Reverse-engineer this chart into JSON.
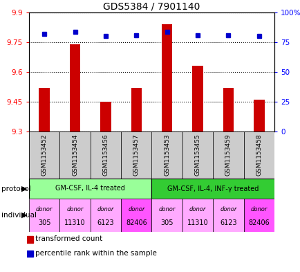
{
  "title": "GDS5384 / 7901140",
  "samples": [
    "GSM1153452",
    "GSM1153454",
    "GSM1153456",
    "GSM1153457",
    "GSM1153453",
    "GSM1153455",
    "GSM1153459",
    "GSM1153458"
  ],
  "bar_values": [
    9.52,
    9.74,
    9.45,
    9.52,
    9.84,
    9.63,
    9.52,
    9.46
  ],
  "bar_base": 9.3,
  "percentile_values": [
    82,
    84,
    80,
    81,
    84,
    81,
    81,
    80
  ],
  "ylim_left": [
    9.3,
    9.9
  ],
  "ylim_right": [
    0,
    100
  ],
  "yticks_left": [
    9.3,
    9.45,
    9.6,
    9.75,
    9.9
  ],
  "ytick_labels_left": [
    "9.3",
    "9.45",
    "9.6",
    "9.75",
    "9.9"
  ],
  "yticks_right": [
    0,
    25,
    50,
    75,
    100
  ],
  "ytick_labels_right": [
    "0",
    "25",
    "50",
    "75",
    "100%"
  ],
  "bar_color": "#cc0000",
  "dot_color": "#0000cc",
  "protocol_groups": [
    {
      "label": "GM-CSF, IL-4 treated",
      "start": 0,
      "end": 4,
      "color": "#99ff99"
    },
    {
      "label": "GM-CSF, IL-4, INF-γ treated",
      "start": 4,
      "end": 8,
      "color": "#33cc33"
    }
  ],
  "individuals": [
    "donor\n305",
    "donor\n11310",
    "donor\n6123",
    "donor\n82406",
    "donor\n305",
    "donor\n11310",
    "donor\n6123",
    "donor\n82406"
  ],
  "individual_colors": [
    "#ffaaff",
    "#ffaaff",
    "#ffaaff",
    "#ff55ff",
    "#ffaaff",
    "#ffaaff",
    "#ffaaff",
    "#ff55ff"
  ],
  "sample_bg_color": "#cccccc",
  "legend_items": [
    {
      "color": "#cc0000",
      "label": "transformed count"
    },
    {
      "color": "#0000cc",
      "label": "percentile rank within the sample"
    }
  ],
  "fig_width": 4.35,
  "fig_height": 3.93,
  "fig_dpi": 100
}
